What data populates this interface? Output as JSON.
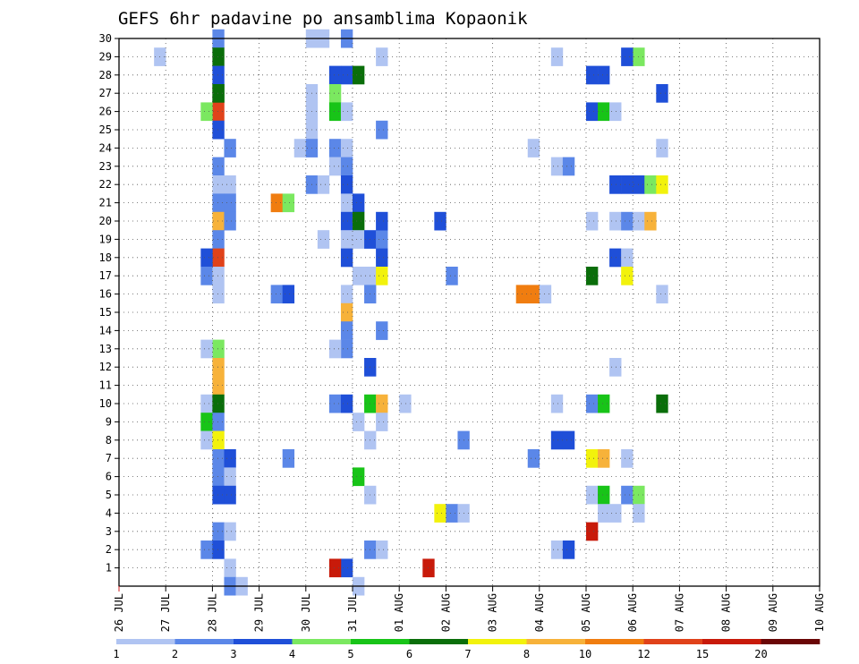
{
  "chart_data": {
    "type": "heatmap",
    "title": "GEFS 6hr padavine po ansamblima Kopaonik",
    "xlabel": "",
    "ylabel": "",
    "grid": true,
    "x_tick_labels": [
      "26 JUL",
      "27 JUL",
      "28 JUL",
      "29 JUL",
      "30 JUL",
      "31 JUL",
      "01 AUG",
      "02 AUG",
      "03 AUG",
      "04 AUG",
      "05 AUG",
      "06 AUG",
      "07 AUG",
      "08 AUG",
      "09 AUG",
      "10 AUG"
    ],
    "y_tick_labels": [
      "1",
      "2",
      "3",
      "4",
      "5",
      "6",
      "7",
      "8",
      "9",
      "10",
      "11",
      "12",
      "13",
      "14",
      "15",
      "16",
      "17",
      "18",
      "19",
      "20",
      "21",
      "22",
      "23",
      "24",
      "25",
      "26",
      "27",
      "28",
      "29",
      "30"
    ],
    "ylim": [
      0,
      30
    ],
    "x_range_days": [
      0,
      15
    ],
    "step_hours": 6,
    "colorbar": {
      "bounds": [
        "1",
        "2",
        "3",
        "4",
        "5",
        "6",
        "7",
        "8",
        "10",
        "12",
        "15",
        "20"
      ],
      "colors": [
        "#b0c4f2",
        "#5b87e8",
        "#1f4fd8",
        "#7be860",
        "#18c418",
        "#0a6e0a",
        "#f2f20c",
        "#f7b23a",
        "#f07d10",
        "#e0421a",
        "#c81a0a",
        "#6a0606"
      ]
    },
    "cells": [
      [
        8,
        30,
        1
      ],
      [
        8,
        29,
        5
      ],
      [
        8,
        28,
        2
      ],
      [
        8,
        27,
        5
      ],
      [
        8,
        26,
        9
      ],
      [
        8,
        25,
        2
      ],
      [
        9,
        24,
        1
      ],
      [
        8,
        23,
        1
      ],
      [
        8,
        22,
        0
      ],
      [
        9,
        22,
        0
      ],
      [
        8,
        21,
        1
      ],
      [
        9,
        21,
        1
      ],
      [
        8,
        20,
        7
      ],
      [
        9,
        20,
        1
      ],
      [
        8,
        19,
        1
      ],
      [
        8,
        18,
        9
      ],
      [
        7,
        18,
        2
      ],
      [
        7,
        17,
        1
      ],
      [
        8,
        17,
        0
      ],
      [
        8,
        16,
        0
      ],
      [
        8,
        13,
        3
      ],
      [
        7,
        13,
        0
      ],
      [
        8,
        12,
        7
      ],
      [
        8,
        11,
        7
      ],
      [
        7,
        10,
        0
      ],
      [
        8,
        10,
        5
      ],
      [
        7,
        9,
        4
      ],
      [
        8,
        9,
        1
      ],
      [
        7,
        8,
        0
      ],
      [
        8,
        8,
        6
      ],
      [
        8,
        7,
        1
      ],
      [
        9,
        7,
        2
      ],
      [
        8,
        6,
        1
      ],
      [
        9,
        6,
        0
      ],
      [
        8,
        5,
        2
      ],
      [
        9,
        5,
        2
      ],
      [
        8,
        3,
        1
      ],
      [
        9,
        3,
        0
      ],
      [
        7,
        2,
        1
      ],
      [
        8,
        2,
        2
      ],
      [
        9,
        1,
        0
      ],
      [
        9,
        0,
        1
      ],
      [
        10,
        0,
        0
      ],
      [
        3,
        29,
        0
      ],
      [
        7,
        26,
        3
      ],
      [
        8,
        27,
        5
      ],
      [
        13,
        21,
        8
      ],
      [
        14,
        21,
        3
      ],
      [
        13,
        16,
        1
      ],
      [
        14,
        16,
        2
      ],
      [
        14,
        7,
        1
      ],
      [
        16,
        30,
        0
      ],
      [
        17,
        30,
        0
      ],
      [
        19,
        30,
        1
      ],
      [
        16,
        27,
        0
      ],
      [
        16,
        26,
        0
      ],
      [
        16,
        25,
        0
      ],
      [
        15,
        24,
        0
      ],
      [
        16,
        24,
        1
      ],
      [
        18,
        24,
        1
      ],
      [
        19,
        24,
        0
      ],
      [
        18,
        23,
        0
      ],
      [
        19,
        23,
        1
      ],
      [
        16,
        22,
        1
      ],
      [
        17,
        22,
        0
      ],
      [
        19,
        22,
        2
      ],
      [
        19,
        21,
        0
      ],
      [
        20,
        21,
        2
      ],
      [
        19,
        20,
        2
      ],
      [
        20,
        20,
        5
      ],
      [
        19,
        19,
        0
      ],
      [
        20,
        19,
        0
      ],
      [
        21,
        19,
        2
      ],
      [
        22,
        19,
        1
      ],
      [
        17,
        19,
        0
      ],
      [
        19,
        18,
        2
      ],
      [
        22,
        18,
        2
      ],
      [
        20,
        17,
        0
      ],
      [
        21,
        17,
        0
      ],
      [
        19,
        16,
        0
      ],
      [
        21,
        16,
        1
      ],
      [
        19,
        15,
        7
      ],
      [
        19,
        14,
        1
      ],
      [
        19,
        13,
        1
      ],
      [
        18,
        13,
        0
      ],
      [
        18,
        10,
        1
      ],
      [
        19,
        10,
        2
      ],
      [
        20,
        9,
        0
      ],
      [
        20,
        6,
        4
      ],
      [
        19,
        1,
        2
      ],
      [
        18,
        1,
        10
      ],
      [
        20,
        0,
        0
      ],
      [
        19,
        28,
        2
      ],
      [
        20,
        28,
        5
      ],
      [
        18,
        28,
        2
      ],
      [
        18,
        27,
        3
      ],
      [
        18,
        26,
        4
      ],
      [
        19,
        26,
        0
      ],
      [
        22,
        29,
        0
      ],
      [
        22,
        25,
        1
      ],
      [
        22,
        20,
        2
      ],
      [
        22,
        17,
        6
      ],
      [
        22,
        14,
        1
      ],
      [
        21,
        12,
        2
      ],
      [
        21,
        10,
        4
      ],
      [
        22,
        10,
        7
      ],
      [
        24,
        10,
        0
      ],
      [
        21,
        8,
        0
      ],
      [
        22,
        9,
        0
      ],
      [
        21,
        5,
        0
      ],
      [
        21,
        2,
        1
      ],
      [
        22,
        2,
        0
      ],
      [
        27,
        20,
        2
      ],
      [
        28,
        17,
        1
      ],
      [
        27,
        4,
        6
      ],
      [
        28,
        4,
        1
      ],
      [
        29,
        4,
        0
      ],
      [
        26,
        1,
        10
      ],
      [
        29,
        8,
        1
      ],
      [
        34,
        16,
        8
      ],
      [
        35,
        16,
        8
      ],
      [
        36,
        16,
        0
      ],
      [
        35,
        24,
        0
      ],
      [
        35,
        7,
        1
      ],
      [
        37,
        29,
        0
      ],
      [
        37,
        23,
        0
      ],
      [
        38,
        23,
        1
      ],
      [
        37,
        10,
        0
      ],
      [
        37,
        8,
        2
      ],
      [
        38,
        8,
        2
      ],
      [
        37,
        2,
        0
      ],
      [
        38,
        2,
        2
      ],
      [
        40,
        28,
        2
      ],
      [
        41,
        28,
        2
      ],
      [
        40,
        26,
        2
      ],
      [
        41,
        26,
        4
      ],
      [
        42,
        26,
        0
      ],
      [
        40,
        20,
        0
      ],
      [
        42,
        20,
        0
      ],
      [
        43,
        20,
        1
      ],
      [
        44,
        20,
        0
      ],
      [
        42,
        18,
        2
      ],
      [
        43,
        18,
        0
      ],
      [
        40,
        17,
        5
      ],
      [
        43,
        17,
        6
      ],
      [
        40,
        10,
        1
      ],
      [
        41,
        10,
        4
      ],
      [
        42,
        22,
        2
      ],
      [
        43,
        22,
        2
      ],
      [
        44,
        22,
        2
      ],
      [
        45,
        22,
        3
      ],
      [
        46,
        22,
        6
      ],
      [
        45,
        20,
        7
      ],
      [
        42,
        12,
        0
      ],
      [
        40,
        7,
        6
      ],
      [
        41,
        7,
        7
      ],
      [
        43,
        7,
        0
      ],
      [
        40,
        5,
        0
      ],
      [
        41,
        5,
        4
      ],
      [
        43,
        5,
        1
      ],
      [
        44,
        5,
        3
      ],
      [
        41,
        4,
        0
      ],
      [
        42,
        4,
        0
      ],
      [
        44,
        4,
        0
      ],
      [
        40,
        3,
        10
      ],
      [
        46,
        27,
        2
      ],
      [
        46,
        24,
        0
      ],
      [
        46,
        16,
        0
      ],
      [
        46,
        10,
        5
      ],
      [
        44,
        29,
        3
      ],
      [
        43,
        29,
        2
      ]
    ]
  }
}
